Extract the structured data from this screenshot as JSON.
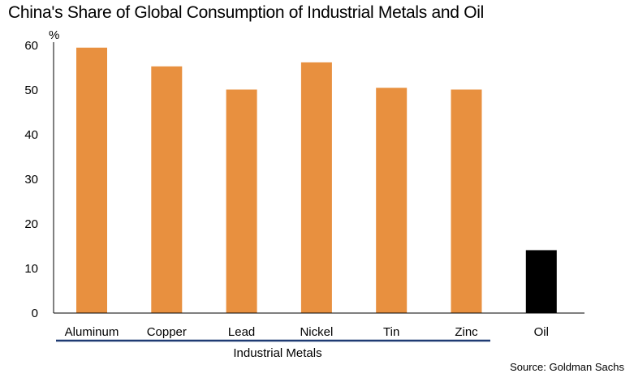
{
  "chart_data": {
    "type": "bar",
    "title": "China's Share of Global Consumption of Industrial Metals and Oil",
    "ylabel": "%",
    "xlabel": "",
    "categories": [
      "Aluminum",
      "Copper",
      "Lead",
      "Nickel",
      "Tin",
      "Zinc",
      "Oil"
    ],
    "values": [
      59.5,
      55.3,
      50.1,
      56.2,
      50.5,
      50.1,
      14.1
    ],
    "ylim": [
      0,
      60
    ],
    "yticks": [
      "0",
      "10",
      "20",
      "30",
      "40",
      "50",
      "60"
    ],
    "grid": false,
    "group_label": "Industrial Metals",
    "source": "Source: Goldman Sachs",
    "colors": {
      "metals": "#e8903f",
      "oil": "#000000",
      "group_line": "#1f3b73",
      "axis": "#000000"
    }
  }
}
